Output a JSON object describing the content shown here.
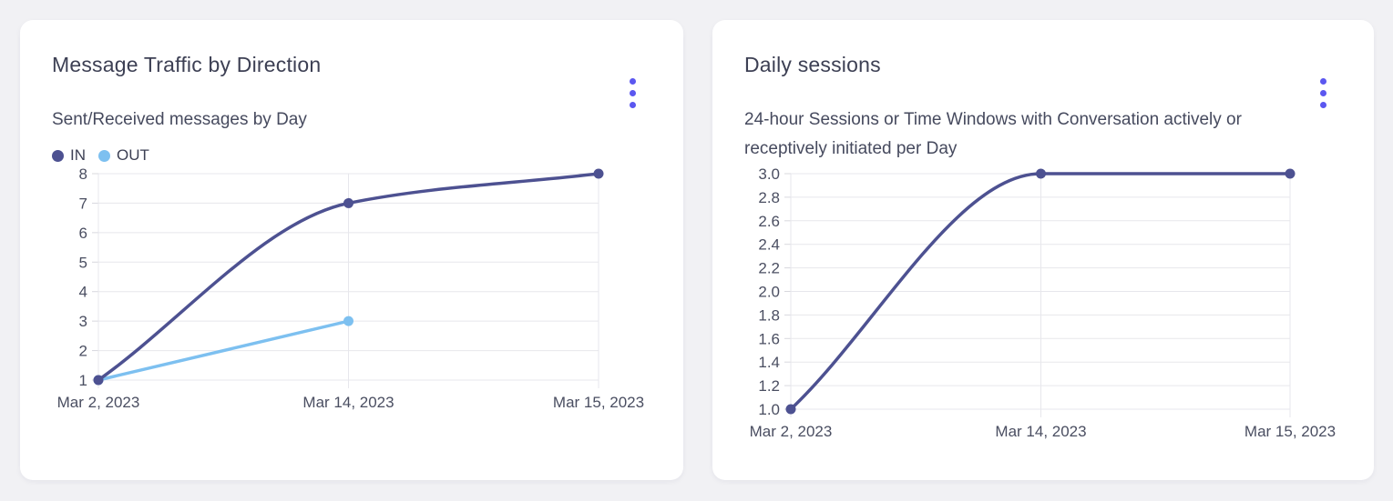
{
  "theme": {
    "page_background": "#f1f1f4",
    "card_background": "#ffffff",
    "accent_menu_color": "#5b57f0",
    "grid_color": "#e7e7ec",
    "tick_color": "#d8d8de",
    "tick_label_color": "#4a4e61",
    "title_color": "#3d4054"
  },
  "icons": {
    "kebab_menu": "vertical-three-dots"
  },
  "chart_data": [
    {
      "type": "line",
      "title": "Message Traffic by Direction",
      "subtitle": "Sent/Received messages by Day",
      "x": [
        "Mar 2, 2023",
        "Mar 14, 2023",
        "Mar 15, 2023"
      ],
      "series": [
        {
          "name": "IN",
          "color": "#4d5191",
          "values": [
            1,
            7,
            8
          ]
        },
        {
          "name": "OUT",
          "color": "#7dc0f0",
          "values": [
            1,
            3,
            null
          ]
        }
      ],
      "ylim": [
        1,
        8
      ],
      "yticks": [
        1,
        2,
        3,
        4,
        5,
        6,
        7,
        8
      ],
      "ytick_labels": [
        "1",
        "2",
        "3",
        "4",
        "5",
        "6",
        "7",
        "8"
      ],
      "grid": true,
      "curve": "monotone",
      "legend_position": "top-left"
    },
    {
      "type": "line",
      "title": "Daily sessions",
      "subtitle": "24-hour Sessions or Time Windows with Conversation actively or receptively initiated per Day",
      "x": [
        "Mar 2, 2023",
        "Mar 14, 2023",
        "Mar 15, 2023"
      ],
      "series": [
        {
          "name": "",
          "color": "#4d5191",
          "values": [
            1,
            3,
            3
          ]
        }
      ],
      "ylim": [
        1,
        3
      ],
      "yticks": [
        1.0,
        1.2,
        1.4,
        1.6,
        1.8,
        2.0,
        2.2,
        2.4,
        2.6,
        2.8,
        3.0
      ],
      "ytick_labels": [
        "1.0",
        "1.2",
        "1.4",
        "1.6",
        "1.8",
        "2.0",
        "2.2",
        "2.4",
        "2.6",
        "2.8",
        "3.0"
      ],
      "grid": true,
      "curve": "monotone",
      "legend_position": "none"
    }
  ]
}
